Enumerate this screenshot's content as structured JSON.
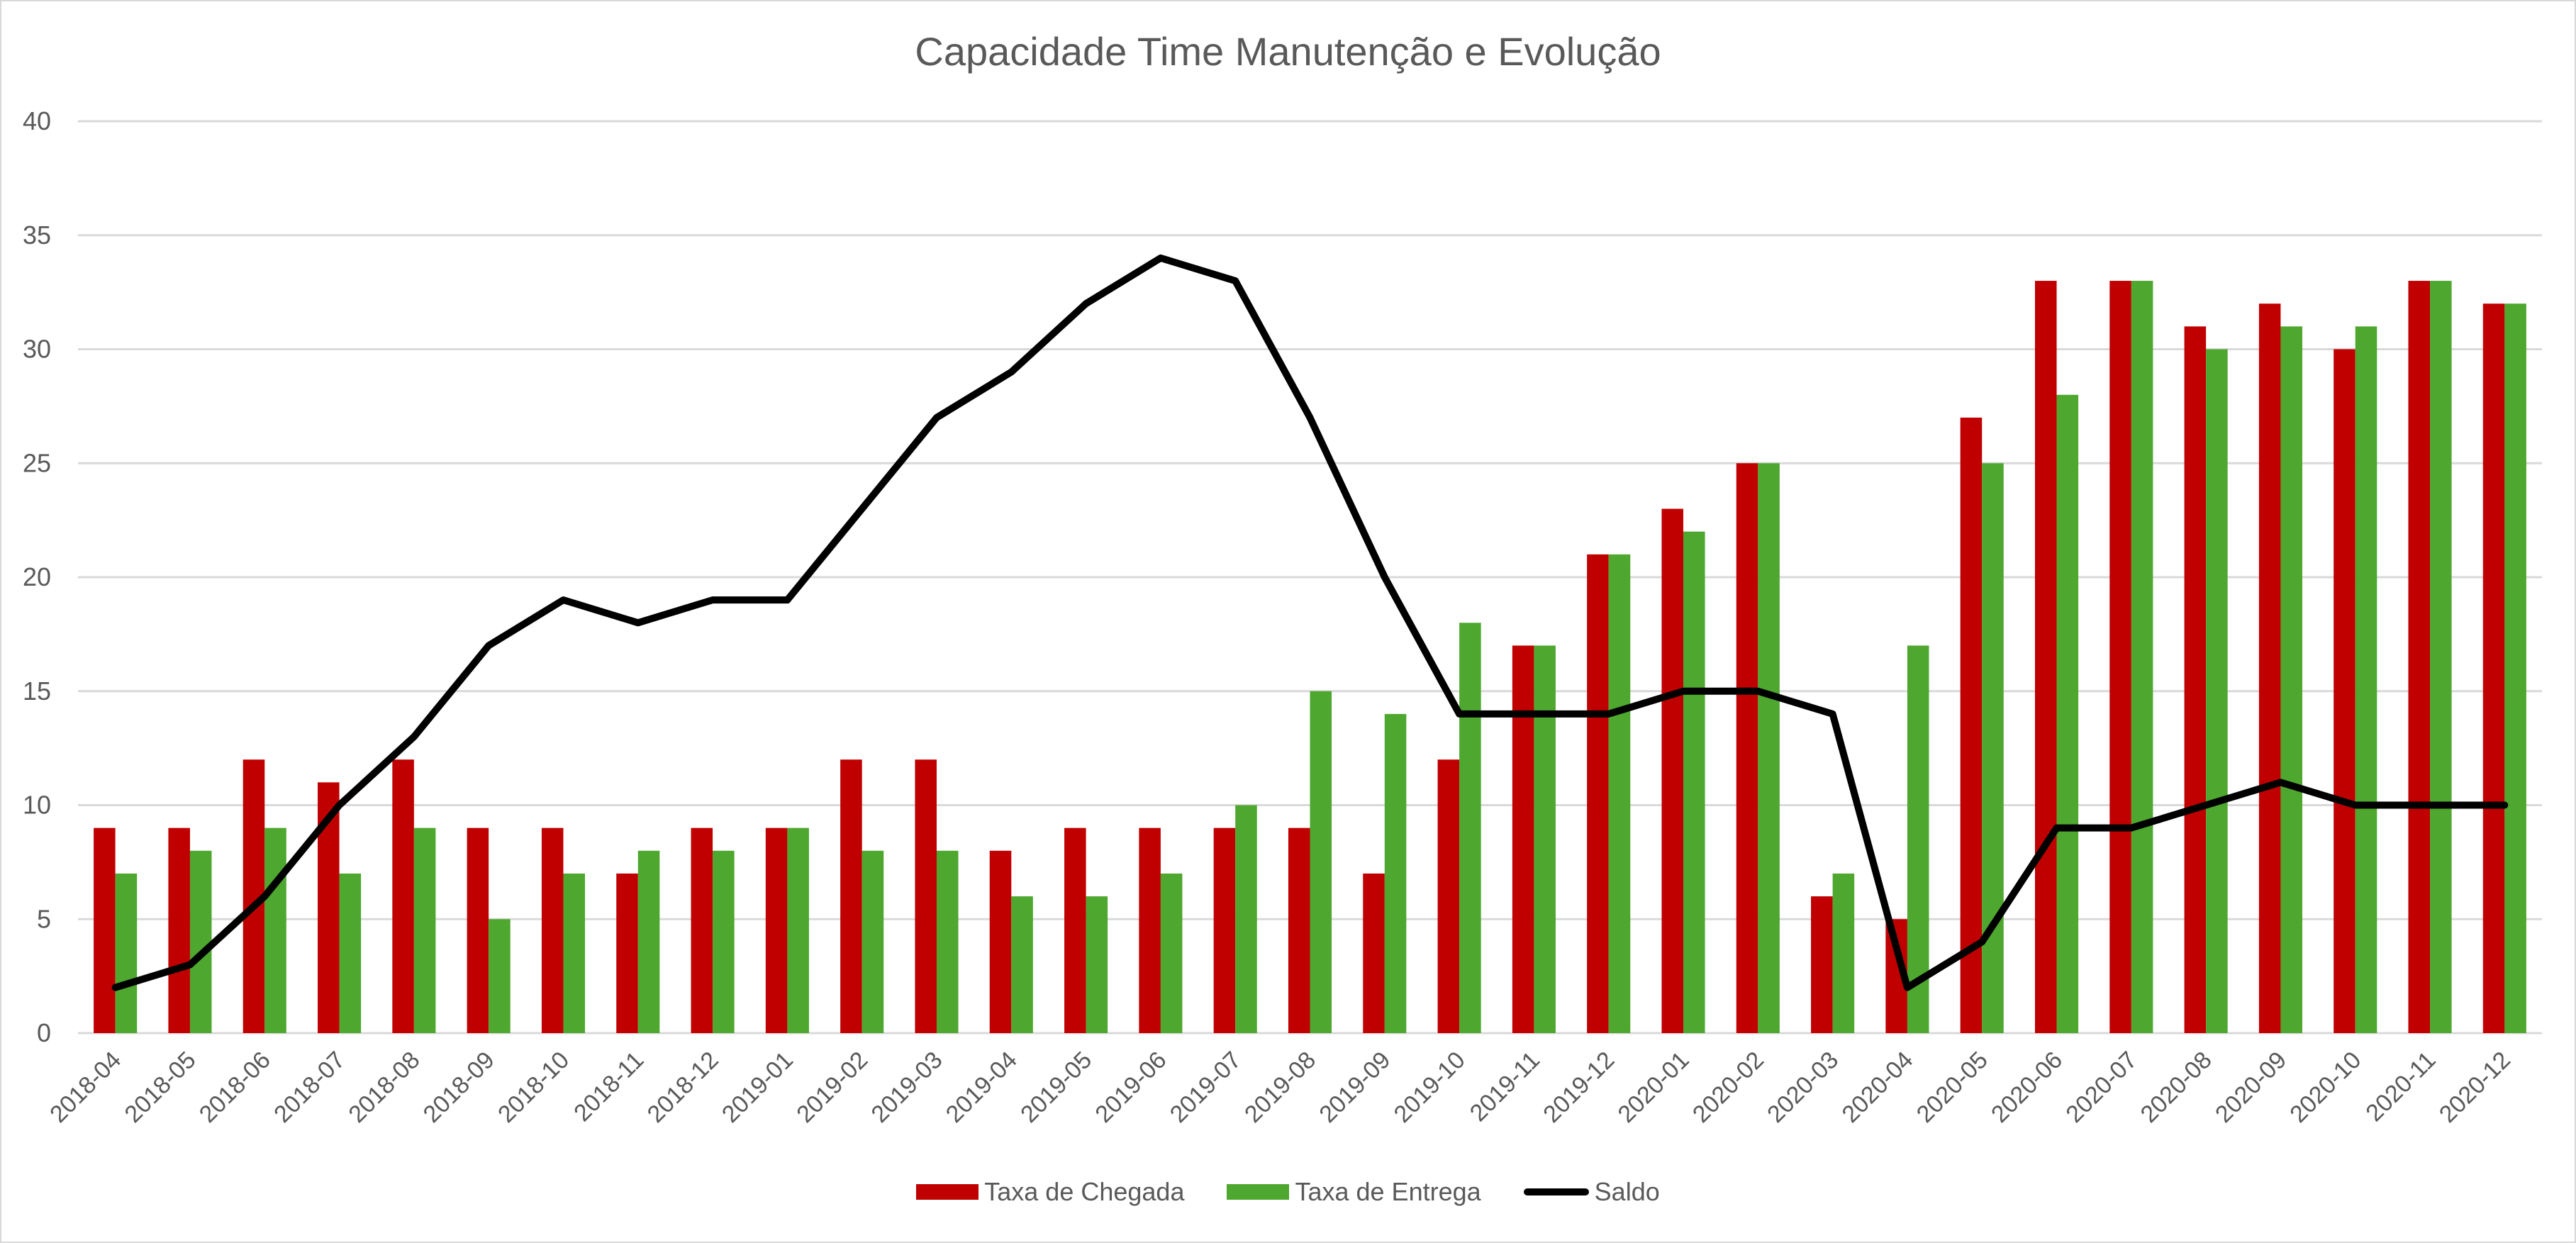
{
  "chart_data": {
    "type": "bar",
    "title": "Capacidade Time Manutenção e Evolução",
    "xlabel": "",
    "ylabel": "",
    "ylim": [
      0,
      40
    ],
    "yticks": [
      0,
      5,
      10,
      15,
      20,
      25,
      30,
      35,
      40
    ],
    "grid": true,
    "legend_position": "bottom",
    "categories": [
      "2018-04",
      "2018-05",
      "2018-06",
      "2018-07",
      "2018-08",
      "2018-09",
      "2018-10",
      "2018-11",
      "2018-12",
      "2019-01",
      "2019-02",
      "2019-03",
      "2019-04",
      "2019-05",
      "2019-06",
      "2019-07",
      "2019-08",
      "2019-09",
      "2019-10",
      "2019-11",
      "2019-12",
      "2020-01",
      "2020-02",
      "2020-03",
      "2020-04",
      "2020-05",
      "2020-06",
      "2020-07",
      "2020-08",
      "2020-09",
      "2020-10",
      "2020-11",
      "2020-12"
    ],
    "series": [
      {
        "name": "Taxa de Chegada",
        "type": "bar",
        "color": "#c00000",
        "values": [
          9,
          9,
          12,
          11,
          12,
          9,
          9,
          7,
          9,
          9,
          12,
          12,
          8,
          9,
          9,
          9,
          9,
          7,
          12,
          17,
          21,
          23,
          25,
          6,
          5,
          27,
          33,
          33,
          31,
          32,
          30,
          33,
          32
        ]
      },
      {
        "name": "Taxa de Entrega",
        "type": "bar",
        "color": "#4ea72e",
        "values": [
          7,
          8,
          9,
          7,
          9,
          5,
          7,
          8,
          8,
          9,
          8,
          8,
          6,
          6,
          7,
          10,
          15,
          14,
          18,
          17,
          21,
          22,
          25,
          7,
          17,
          25,
          28,
          33,
          30,
          31,
          31,
          33,
          32
        ]
      },
      {
        "name": "Saldo",
        "type": "line",
        "color": "#000000",
        "values": [
          2,
          3,
          6,
          10,
          13,
          17,
          19,
          18,
          19,
          19,
          23,
          27,
          29,
          32,
          34,
          33,
          27,
          20,
          14,
          14,
          14,
          15,
          15,
          14,
          2,
          4,
          9,
          9,
          10,
          11,
          10,
          10,
          10
        ]
      }
    ]
  }
}
